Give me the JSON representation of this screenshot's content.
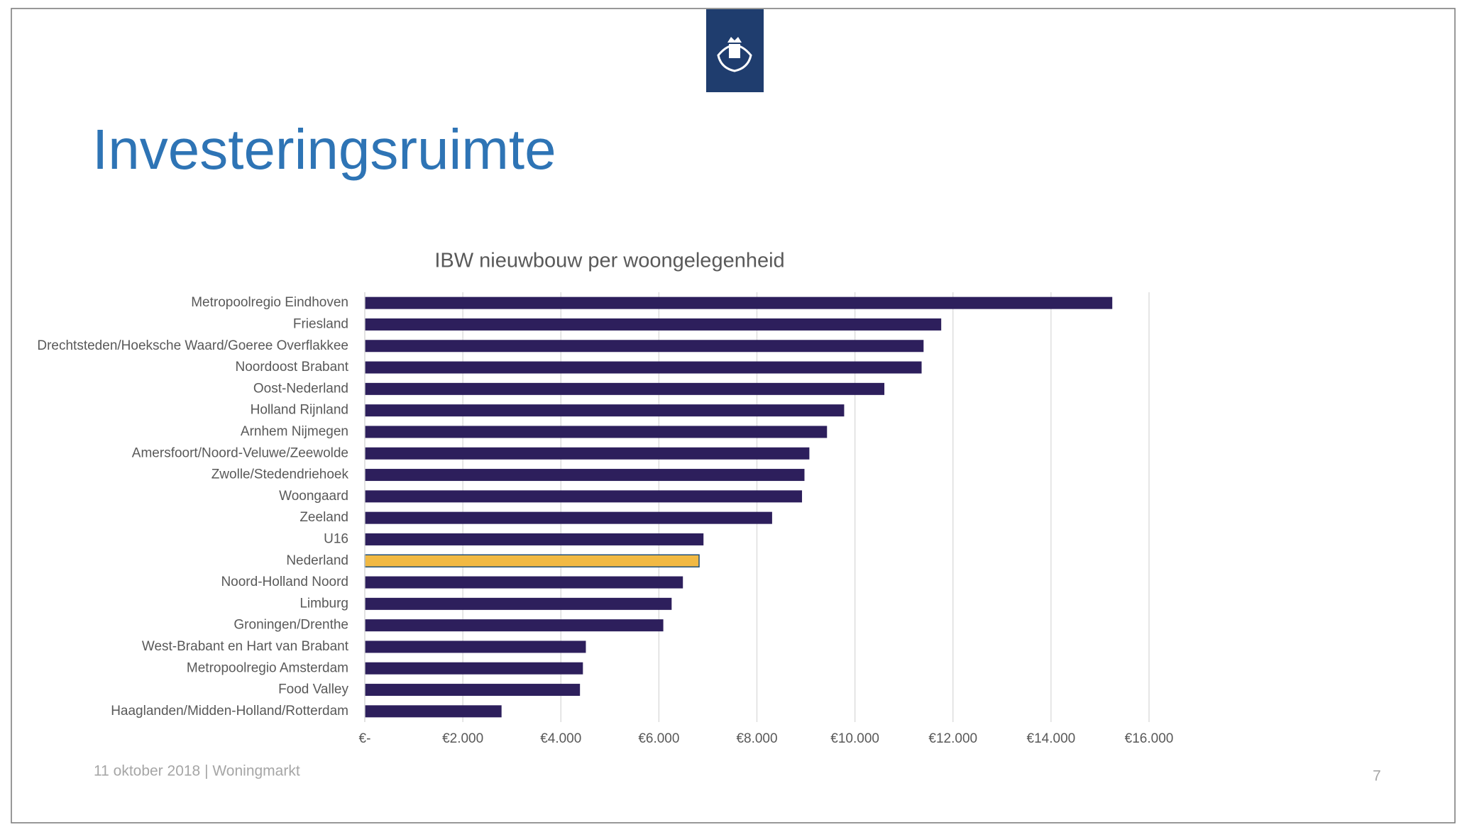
{
  "slide": {
    "title": "Investeringsruimte",
    "footer": "11 oktober 2018 | Woningmarkt",
    "page_number": "7"
  },
  "chart_data": {
    "type": "hbar",
    "title": "IBW nieuwbouw per woongelegenheid",
    "categories": [
      "Metropoolregio Eindhoven",
      "Friesland",
      "Drechtsteden/Hoeksche Waard/Goeree Overflakkee",
      "Noordoost Brabant",
      "Oost-Nederland",
      "Holland Rijnland",
      "Arnhem Nijmegen",
      "Amersfoort/Noord-Veluwe/Zeewolde",
      "Zwolle/Stedendriehoek",
      "Woongaard",
      "Zeeland",
      "U16",
      "Nederland",
      "Noord-Holland Noord",
      "Limburg",
      "Groningen/Drenthe",
      "West-Brabant en Hart van Brabant",
      "Metropoolregio Amsterdam",
      "Food Valley",
      "Haaglanden/Midden-Holland/Rotterdam"
    ],
    "values": [
      15250,
      11760,
      11400,
      11360,
      10600,
      9780,
      9430,
      9070,
      8970,
      8920,
      8310,
      6910,
      6820,
      6490,
      6260,
      6090,
      4510,
      4450,
      4390,
      2790
    ],
    "colors": [
      "#2d1f5c",
      "#2d1f5c",
      "#2d1f5c",
      "#2d1f5c",
      "#2d1f5c",
      "#2d1f5c",
      "#2d1f5c",
      "#2d1f5c",
      "#2d1f5c",
      "#2d1f5c",
      "#2d1f5c",
      "#2d1f5c",
      "#f1b943",
      "#2d1f5c",
      "#2d1f5c",
      "#2d1f5c",
      "#2d1f5c",
      "#2d1f5c",
      "#2d1f5c",
      "#2d1f5c"
    ],
    "xlim": [
      0,
      16000
    ],
    "xticks": [
      {
        "value": 0,
        "label": "€-"
      },
      {
        "value": 2000,
        "label": "€2.000"
      },
      {
        "value": 4000,
        "label": "€4.000"
      },
      {
        "value": 6000,
        "label": "€6.000"
      },
      {
        "value": 8000,
        "label": "€8.000"
      },
      {
        "value": 10000,
        "label": "€10.000"
      },
      {
        "value": 12000,
        "label": "€12.000"
      },
      {
        "value": 14000,
        "label": "€14.000"
      },
      {
        "value": 16000,
        "label": "€16.000"
      }
    ],
    "grid": true
  }
}
